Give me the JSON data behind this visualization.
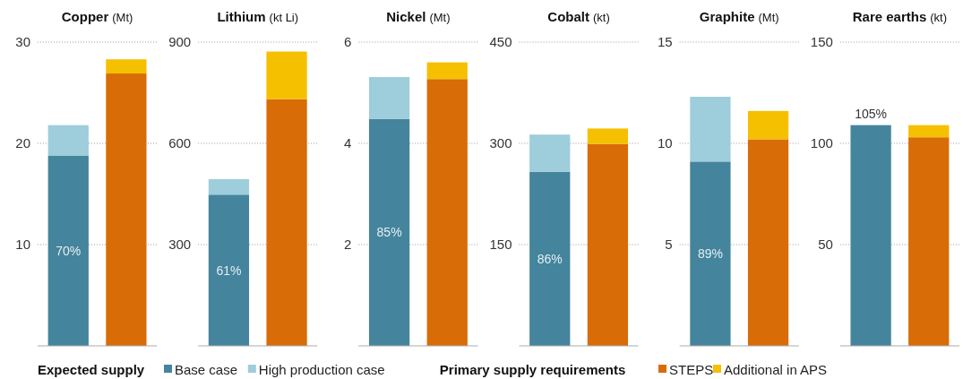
{
  "chart_data": [
    {
      "type": "bar",
      "stacked": true,
      "title": "Copper",
      "subtitle": "(Mt)",
      "categories": [
        null,
        null
      ],
      "ylim": [
        0,
        30
      ],
      "yticks": [
        10,
        20,
        30
      ],
      "grid": "y",
      "legend": "bottom",
      "annotations": [
        "Expected supply",
        "Primary supply requirements",
        "70%"
      ],
      "series": [
        {
          "name": "Base case",
          "color": "#44849c",
          "values": [
            18.8,
            null
          ]
        },
        {
          "name": "High production case",
          "color": "#9ecddb",
          "values": [
            3.0,
            null
          ]
        },
        {
          "name": "STEPS",
          "color": "#d86c06",
          "values": [
            null,
            26.9
          ]
        },
        {
          "name": "Additional in APS",
          "color": "#f5c000",
          "values": [
            null,
            1.4
          ]
        }
      ]
    },
    {
      "type": "bar",
      "stacked": true,
      "title": "Lithium",
      "subtitle": "(kt Li)",
      "categories": [
        null,
        null
      ],
      "ylim": [
        0,
        900
      ],
      "yticks": [
        300,
        600,
        900
      ],
      "grid": "y",
      "annotations": [
        "61%"
      ],
      "series": [
        {
          "color": "#44849c",
          "values": [
            448,
            null
          ]
        },
        {
          "color": "#9ecddb",
          "values": [
            46,
            null
          ]
        },
        {
          "color": "#d86c06",
          "values": [
            null,
            731
          ]
        },
        {
          "color": "#f5c000",
          "values": [
            null,
            141
          ]
        }
      ]
    },
    {
      "type": "bar",
      "stacked": true,
      "title": "Nickel",
      "subtitle": "(Mt)",
      "categories": [
        null,
        null
      ],
      "ylim": [
        0,
        6
      ],
      "yticks": [
        2,
        4,
        6
      ],
      "grid": "y",
      "annotations": [
        "85%"
      ],
      "series": [
        {
          "color": "#44849c",
          "values": [
            4.48,
            null
          ]
        },
        {
          "color": "#9ecddb",
          "values": [
            0.83,
            null
          ]
        },
        {
          "color": "#d86c06",
          "values": [
            null,
            5.27
          ]
        },
        {
          "color": "#f5c000",
          "values": [
            null,
            0.33
          ]
        }
      ]
    },
    {
      "type": "bar",
      "stacked": true,
      "title": "Cobalt",
      "subtitle": "(kt)",
      "categories": [
        null,
        null
      ],
      "ylim": [
        0,
        450
      ],
      "yticks": [
        150,
        300,
        450
      ],
      "grid": "y",
      "annotations": [
        "86%"
      ],
      "series": [
        {
          "color": "#44849c",
          "values": [
            258,
            null
          ]
        },
        {
          "color": "#9ecddb",
          "values": [
            55,
            null
          ]
        },
        {
          "color": "#d86c06",
          "values": [
            null,
            299
          ]
        },
        {
          "color": "#f5c000",
          "values": [
            null,
            23
          ]
        }
      ]
    },
    {
      "type": "bar",
      "stacked": true,
      "title": "Graphite",
      "subtitle": "(Mt)",
      "categories": [
        null,
        null
      ],
      "ylim": [
        0,
        15
      ],
      "yticks": [
        5,
        10,
        15
      ],
      "grid": "y",
      "annotations": [
        "89%"
      ],
      "series": [
        {
          "color": "#44849c",
          "values": [
            9.1,
            null
          ]
        },
        {
          "color": "#9ecddb",
          "values": [
            3.2,
            null
          ]
        },
        {
          "color": "#d86c06",
          "values": [
            null,
            10.2
          ]
        },
        {
          "color": "#f5c000",
          "values": [
            null,
            1.4
          ]
        }
      ]
    },
    {
      "type": "bar",
      "stacked": true,
      "title": "Rare earths",
      "subtitle": "(kt)",
      "categories": [
        null,
        null
      ],
      "ylim": [
        0,
        150
      ],
      "yticks": [
        50,
        100,
        150
      ],
      "grid": "y",
      "annotations": [
        "105%"
      ],
      "series": [
        {
          "color": "#44849c",
          "values": [
            109,
            null
          ]
        },
        {
          "color": "#d86c06",
          "values": [
            null,
            103
          ]
        },
        {
          "color": "#f5c000",
          "values": [
            null,
            6
          ]
        }
      ]
    }
  ]
}
